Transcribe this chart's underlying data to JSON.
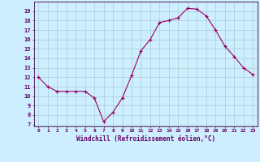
{
  "x": [
    0,
    1,
    2,
    3,
    4,
    5,
    6,
    7,
    8,
    9,
    10,
    11,
    12,
    13,
    14,
    15,
    16,
    17,
    18,
    19,
    20,
    21,
    22,
    23
  ],
  "y": [
    12.0,
    11.0,
    10.5,
    10.5,
    10.5,
    10.5,
    9.8,
    7.3,
    8.3,
    9.8,
    12.2,
    14.8,
    16.0,
    17.8,
    18.0,
    18.3,
    19.3,
    19.2,
    18.5,
    17.0,
    15.3,
    14.2,
    13.0,
    12.3
  ],
  "title": "",
  "xlabel": "Windchill (Refroidissement éolien,°C)",
  "ylabel": "",
  "xlim": [
    -0.5,
    23.5
  ],
  "ylim": [
    6.8,
    20.0
  ],
  "yticks": [
    7,
    8,
    9,
    10,
    11,
    12,
    13,
    14,
    15,
    16,
    17,
    18,
    19
  ],
  "xticks": [
    0,
    1,
    2,
    3,
    4,
    5,
    6,
    7,
    8,
    9,
    10,
    11,
    12,
    13,
    14,
    15,
    16,
    17,
    18,
    19,
    20,
    21,
    22,
    23
  ],
  "line_color": "#990066",
  "marker": "+",
  "bg_color": "#cceeff",
  "grid_color": "#aacccc",
  "axis_color": "#440044",
  "tick_color": "#660066",
  "label_color": "#660066"
}
